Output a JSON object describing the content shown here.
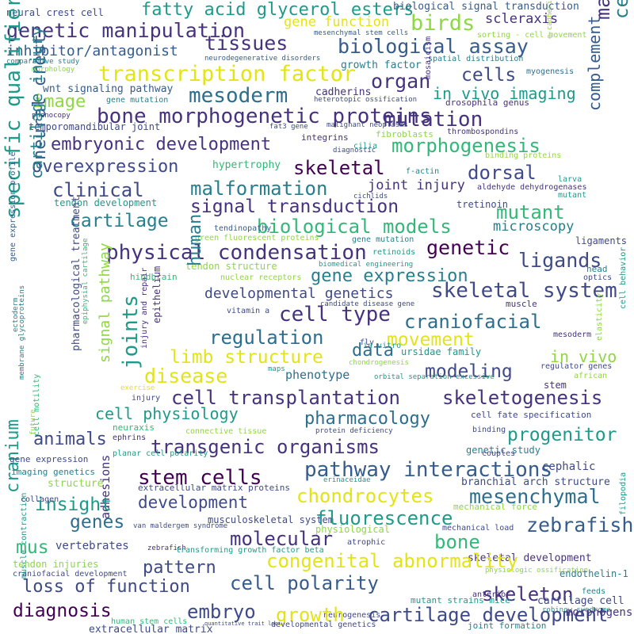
{
  "palette": {
    "dark_purple": "#46327e",
    "indigo": "#3e4a89",
    "blue": "#365c8d",
    "steel": "#2d6e8e",
    "teal": "#277f8e",
    "sea": "#1f9a8a",
    "green": "#35b779",
    "lime": "#8fd744",
    "yellow": "#e3e418",
    "deep": "#440154"
  },
  "words": [
    {
      "text": "neural crest cell",
      "color": "indigo"
    },
    {
      "text": "fatty acid glycerol esters",
      "color": "sea"
    },
    {
      "text": "biological signal transduction",
      "color": "blue"
    },
    {
      "text": "sorting - cell movement",
      "color": "lime"
    },
    {
      "text": "genetic manipulation",
      "color": "dark_purple"
    },
    {
      "text": "gene function",
      "color": "yellow"
    },
    {
      "text": "birds",
      "color": "lime"
    },
    {
      "text": "scleraxis",
      "color": "dark_purple"
    },
    {
      "text": "tissues",
      "color": "dark_purple"
    },
    {
      "text": "mesenchymal stem cells",
      "color": "blue"
    },
    {
      "text": "e-cadherin",
      "color": "lime"
    },
    {
      "text": "mandible",
      "color": "dark_purple"
    },
    {
      "text": "cell communication",
      "color": "teal"
    },
    {
      "text": "inhibitor/antagonist",
      "color": "blue"
    },
    {
      "text": "biological assay",
      "color": "blue"
    },
    {
      "text": "complement",
      "color": "blue"
    },
    {
      "text": "comparative study",
      "color": "teal"
    },
    {
      "text": "neurodegenerative disorders",
      "color": "blue"
    },
    {
      "text": "growth factor",
      "color": "teal"
    },
    {
      "text": "spatial distribution",
      "color": "teal"
    },
    {
      "text": "morphology",
      "color": "lime"
    },
    {
      "text": "transcription factor",
      "color": "yellow"
    },
    {
      "text": "cells",
      "color": "indigo"
    },
    {
      "text": "myogenesis",
      "color": "steel"
    },
    {
      "text": "specific qualifier value",
      "color": "sea"
    },
    {
      "text": "wnt signaling pathway",
      "color": "blue"
    },
    {
      "text": "mosaicism",
      "color": "dark_purple"
    },
    {
      "text": "organ",
      "color": "dark_purple"
    },
    {
      "text": "cadherins",
      "color": "dark_purple"
    },
    {
      "text": "in vivo imaging",
      "color": "sea"
    },
    {
      "text": "image",
      "color": "lime"
    },
    {
      "text": "mesoderm",
      "color": "steel"
    },
    {
      "text": "gene mutation",
      "color": "teal"
    },
    {
      "text": "heterotopic ossification",
      "color": "indigo"
    },
    {
      "text": "drosophila genus",
      "color": "dark_purple"
    },
    {
      "text": "bone morphogenetic proteins",
      "color": "dark_purple"
    },
    {
      "text": "mutation",
      "color": "dark_purple"
    },
    {
      "text": "phenocopy",
      "color": "dark_purple"
    },
    {
      "text": "temporomandibular joint",
      "color": "indigo"
    },
    {
      "text": "fat3 gene",
      "color": "indigo"
    },
    {
      "text": "malignant neoplasms",
      "color": "indigo"
    },
    {
      "text": "thrombospondins",
      "color": "dark_purple"
    },
    {
      "text": "embryonic development",
      "color": "dark_purple"
    },
    {
      "text": "fibroblasts",
      "color": "lime"
    },
    {
      "text": "morphogenesis",
      "color": "green"
    },
    {
      "text": "integrins",
      "color": "dark_purple"
    },
    {
      "text": "cilia",
      "color": "sea"
    },
    {
      "text": "binding proteins",
      "color": "lime"
    },
    {
      "text": "diagnostic",
      "color": "indigo"
    },
    {
      "text": "neural crest",
      "color": "blue"
    },
    {
      "text": "gene expression profile",
      "color": "blue"
    },
    {
      "text": "overexpression",
      "color": "indigo"
    },
    {
      "text": "hypertrophy",
      "color": "green"
    },
    {
      "text": "skeletal",
      "color": "deep"
    },
    {
      "text": "dorsal",
      "color": "indigo"
    },
    {
      "text": "f-actin",
      "color": "teal"
    },
    {
      "text": "larva",
      "color": "sea"
    },
    {
      "text": "cartilage injury",
      "color": "teal"
    },
    {
      "text": "clinical",
      "color": "indigo"
    },
    {
      "text": "malformation",
      "color": "teal"
    },
    {
      "text": "joint injury",
      "color": "dark_purple"
    },
    {
      "text": "aldehyde dehydrogenases",
      "color": "dark_purple"
    },
    {
      "text": "tendon development",
      "color": "sea"
    },
    {
      "text": "cichlids",
      "color": "indigo"
    },
    {
      "text": "mutant",
      "color": "sea"
    },
    {
      "text": "signal transduction",
      "color": "dark_purple"
    },
    {
      "text": "tretinoin",
      "color": "indigo"
    },
    {
      "text": "mutant",
      "color": "green"
    },
    {
      "text": "cartilage",
      "color": "teal"
    },
    {
      "text": "biological models",
      "color": "green"
    },
    {
      "text": "tendinopathy",
      "color": "blue"
    },
    {
      "text": "green fluorescent proteins",
      "color": "lime"
    },
    {
      "text": "microscopy",
      "color": "teal"
    },
    {
      "text": "ligaments",
      "color": "indigo"
    },
    {
      "text": "gene mutation",
      "color": "teal"
    },
    {
      "text": "physical condensation",
      "color": "dark_purple"
    },
    {
      "text": "genetic",
      "color": "deep"
    },
    {
      "text": "retinoids",
      "color": "sea"
    },
    {
      "text": "tendon structure",
      "color": "lime"
    },
    {
      "text": "ligands",
      "color": "indigo"
    },
    {
      "text": "biomedical engineering",
      "color": "sea"
    },
    {
      "text": "human",
      "color": "teal"
    },
    {
      "text": "gene expression",
      "color": "teal"
    },
    {
      "text": "hindbrain",
      "color": "green"
    },
    {
      "text": "nuclear receptors",
      "color": "lime"
    },
    {
      "text": "head",
      "color": "teal"
    },
    {
      "text": "optics",
      "color": "indigo"
    },
    {
      "text": "ectoderm",
      "color": "teal"
    },
    {
      "text": "pharmacological treatment",
      "color": "indigo"
    },
    {
      "text": "epiphysial cartilage",
      "color": "green"
    },
    {
      "text": "developmental genetics",
      "color": "indigo"
    },
    {
      "text": "skeletal system",
      "color": "indigo"
    },
    {
      "text": "muscle",
      "color": "dark_purple"
    },
    {
      "text": "candidate disease gene",
      "color": "indigo"
    },
    {
      "text": "signal pathway",
      "color": "lime"
    },
    {
      "text": "joints",
      "color": "sea"
    },
    {
      "text": "injury and repair",
      "color": "dark_purple"
    },
    {
      "text": "epithelium",
      "color": "dark_purple"
    },
    {
      "text": "vitamin a",
      "color": "indigo"
    },
    {
      "text": "cell type",
      "color": "dark_purple"
    },
    {
      "text": "craniofacial",
      "color": "steel"
    },
    {
      "text": "regulation",
      "color": "steel"
    },
    {
      "text": "elasticity",
      "color": "lime"
    },
    {
      "text": "cell behavior",
      "color": "sea"
    },
    {
      "text": "movement",
      "color": "yellow"
    },
    {
      "text": "mesoderm",
      "color": "dark_purple"
    },
    {
      "text": "fly",
      "color": "indigo"
    },
    {
      "text": "in vitro",
      "color": "sea"
    },
    {
      "text": "limb structure",
      "color": "yellow"
    },
    {
      "text": "data",
      "color": "steel"
    },
    {
      "text": "ursidae family",
      "color": "sea"
    },
    {
      "text": "in vivo",
      "color": "lime"
    },
    {
      "text": "membrane glycoproteins",
      "color": "teal"
    },
    {
      "text": "disease",
      "color": "yellow"
    },
    {
      "text": "maps",
      "color": "sea"
    },
    {
      "text": "chondrogenesis",
      "color": "lime"
    },
    {
      "text": "regulator genes",
      "color": "indigo"
    },
    {
      "text": "african",
      "color": "lime"
    },
    {
      "text": "cell motility",
      "color": "green"
    },
    {
      "text": "phenotype",
      "color": "steel"
    },
    {
      "text": "modeling",
      "color": "indigo"
    },
    {
      "text": "orbital separation excessive",
      "color": "sea"
    },
    {
      "text": "exercise",
      "color": "yellow"
    },
    {
      "text": "stem",
      "color": "dark_purple"
    },
    {
      "text": "cell transplantation",
      "color": "dark_purple"
    },
    {
      "text": "skeletogenesis",
      "color": "dark_purple"
    },
    {
      "text": "injury",
      "color": "indigo"
    },
    {
      "text": "future",
      "color": "lime"
    },
    {
      "text": "cell physiology",
      "color": "sea"
    },
    {
      "text": "pharmacology",
      "color": "steel"
    },
    {
      "text": "cell fate specification",
      "color": "indigo"
    },
    {
      "text": "cranium",
      "color": "sea"
    },
    {
      "text": "neuraxis",
      "color": "green"
    },
    {
      "text": "connective tissue",
      "color": "lime"
    },
    {
      "text": "binding",
      "color": "indigo"
    },
    {
      "text": "animals",
      "color": "indigo"
    },
    {
      "text": "transgenic organisms",
      "color": "dark_purple"
    },
    {
      "text": "ephrins",
      "color": "dark_purple"
    },
    {
      "text": "protein deficiency",
      "color": "indigo"
    },
    {
      "text": "progenitor",
      "color": "sea"
    },
    {
      "text": "gene expression",
      "color": "indigo"
    },
    {
      "text": "planar cell polarity",
      "color": "sea"
    },
    {
      "text": "genetic study",
      "color": "teal"
    },
    {
      "text": "couples",
      "color": "indigo"
    },
    {
      "text": "adhesions",
      "color": "dark_purple"
    },
    {
      "text": "stem cells",
      "color": "deep"
    },
    {
      "text": "pathway interactions",
      "color": "blue"
    },
    {
      "text": "cephalic",
      "color": "indigo"
    },
    {
      "text": "imaging genetics",
      "color": "teal"
    },
    {
      "text": "structure",
      "color": "lime"
    },
    {
      "text": "erinaceidae",
      "color": "sea"
    },
    {
      "text": "branchial arch structure",
      "color": "indigo"
    },
    {
      "text": "muscle contraction",
      "color": "sea"
    },
    {
      "text": "extracellular matrix proteins",
      "color": "indigo"
    },
    {
      "text": "chondrocytes",
      "color": "yellow"
    },
    {
      "text": "mesenchymal",
      "color": "steel"
    },
    {
      "text": "insight",
      "color": "sea"
    },
    {
      "text": "development",
      "color": "indigo"
    },
    {
      "text": "mechanical force",
      "color": "lime"
    },
    {
      "text": "filopodia",
      "color": "sea"
    },
    {
      "text": "collagen",
      "color": "indigo"
    },
    {
      "text": "genes",
      "color": "steel"
    },
    {
      "text": "musculoskeletal system",
      "color": "indigo"
    },
    {
      "text": "fluorescence",
      "color": "sea"
    },
    {
      "text": "mus",
      "color": "green"
    },
    {
      "text": "van maldergem syndrome",
      "color": "indigo"
    },
    {
      "text": "molecular",
      "color": "dark_purple"
    },
    {
      "text": "physiological",
      "color": "lime"
    },
    {
      "text": "bone",
      "color": "green"
    },
    {
      "text": "mechanical load",
      "color": "indigo"
    },
    {
      "text": "zebrafish",
      "color": "blue"
    },
    {
      "text": "vertebrates",
      "color": "indigo"
    },
    {
      "text": "zebrafish",
      "color": "dark_purple"
    },
    {
      "text": "atrophic",
      "color": "indigo"
    },
    {
      "text": "skeletal development",
      "color": "dark_purple"
    },
    {
      "text": "physiologic ossification",
      "color": "lime"
    },
    {
      "text": "pattern",
      "color": "indigo"
    },
    {
      "text": "transforming growth factor beta",
      "color": "sea"
    },
    {
      "text": "congenital abnormality",
      "color": "yellow"
    },
    {
      "text": "endothelin-1",
      "color": "teal"
    },
    {
      "text": "tendon injuries",
      "color": "lime"
    },
    {
      "text": "craniofacial development",
      "color": "indigo"
    },
    {
      "text": "loss of function",
      "color": "indigo"
    },
    {
      "text": "cell polarity",
      "color": "blue"
    },
    {
      "text": "skeleton",
      "color": "dark_purple"
    },
    {
      "text": "anterior",
      "color": "dark_purple"
    },
    {
      "text": "feeds",
      "color": "teal"
    },
    {
      "text": "mutant strains mice",
      "color": "sea"
    },
    {
      "text": "cartilage cell",
      "color": "indigo"
    },
    {
      "text": "robinow syndrome",
      "color": "sea"
    },
    {
      "text": "diagnosis",
      "color": "deep"
    },
    {
      "text": "embryo",
      "color": "indigo"
    },
    {
      "text": "human stem cells",
      "color": "green"
    },
    {
      "text": "quantitative trait loci",
      "color": "indigo"
    },
    {
      "text": "neurogenesis",
      "color": "indigo"
    },
    {
      "text": "growth",
      "color": "yellow"
    },
    {
      "text": "cartilage development",
      "color": "indigo"
    },
    {
      "text": "morphogens",
      "color": "dark_purple"
    },
    {
      "text": "extracellular matrix",
      "color": "indigo"
    },
    {
      "text": "developmental genetics",
      "color": "indigo"
    },
    {
      "text": "joint formation",
      "color": "teal"
    }
  ]
}
